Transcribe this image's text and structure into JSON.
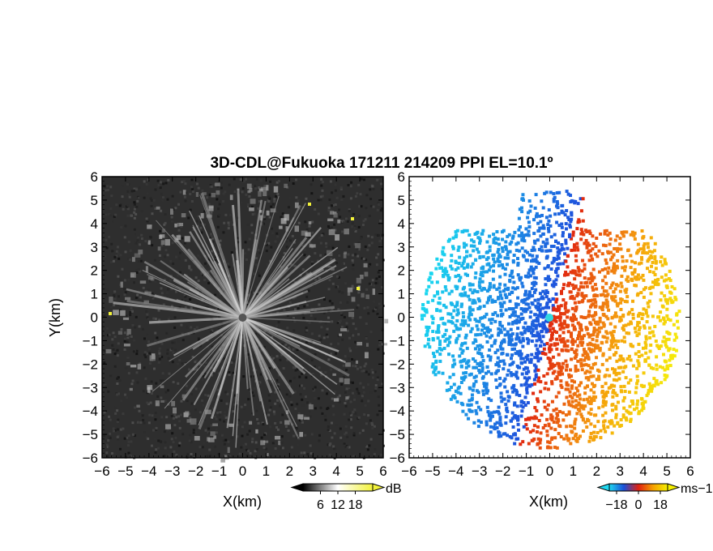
{
  "chart_data": {
    "type": "heatmap",
    "title": "3D-CDL@Fukuoka 171211 214209 PPI EL=10.1º",
    "panels": [
      {
        "name": "reflectivity",
        "xlabel": "X(km)",
        "ylabel": "Y(km)",
        "xlim": [
          -6,
          6
        ],
        "ylim": [
          -6,
          6
        ],
        "xticks": [
          "−6",
          "−5",
          "−4",
          "−3",
          "−2",
          "−1",
          "0",
          "1",
          "2",
          "3",
          "4",
          "5",
          "6"
        ],
        "yticks": [
          "6",
          "5",
          "4",
          "3",
          "2",
          "1",
          "0",
          "−1",
          "−2",
          "−3",
          "−4",
          "−5",
          "−6"
        ],
        "colorbar": {
          "unit": "dB",
          "ticks": [
            "6",
            "12",
            "18"
          ],
          "range": [
            0,
            24
          ],
          "colors": [
            "#000000",
            "#ffffff",
            "#f2f23a"
          ]
        }
      },
      {
        "name": "doppler_velocity",
        "xlabel": "X(km)",
        "ylabel": "",
        "xlim": [
          -6,
          6
        ],
        "ylim": [
          -6,
          6
        ],
        "xticks": [
          "−6",
          "−5",
          "−4",
          "−3",
          "−2",
          "−1",
          "0",
          "1",
          "2",
          "3",
          "4",
          "5",
          "6"
        ],
        "yticks": [
          "6",
          "5",
          "4",
          "3",
          "2",
          "1",
          "0",
          "−1",
          "−2",
          "−3",
          "−4",
          "−5",
          "−6"
        ],
        "colorbar": {
          "unit": "ms−1",
          "ticks": [
            "−18",
            "0",
            "18"
          ],
          "range": [
            -24,
            24
          ],
          "colors": [
            "#20d8f0",
            "#1a4fd8",
            "#e02010",
            "#f5a000",
            "#f5f000"
          ]
        }
      }
    ]
  }
}
